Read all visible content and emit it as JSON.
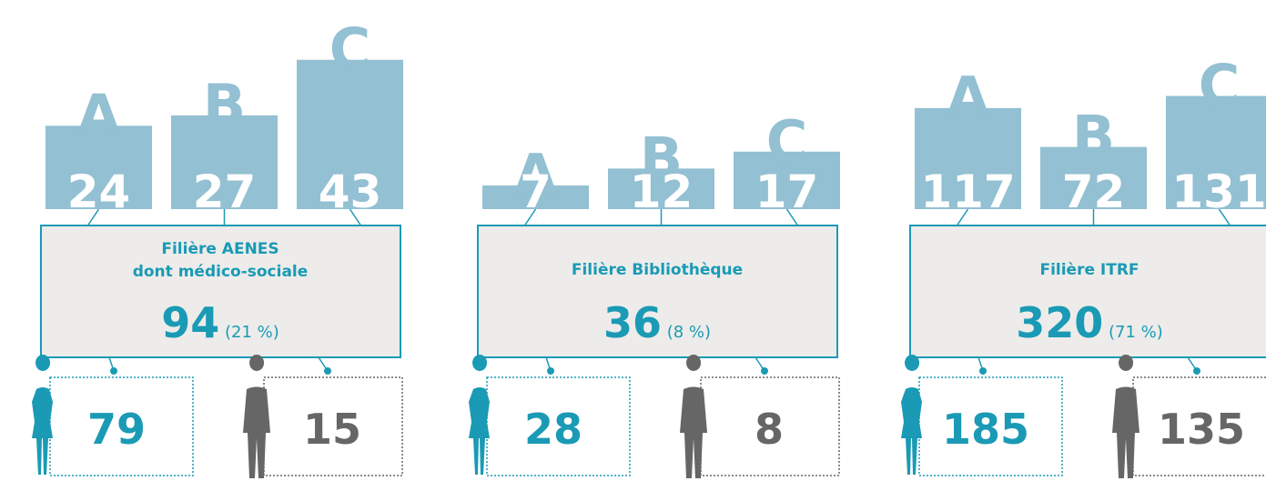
{
  "groups": [
    {
      "bars": [
        {
          "label": "A",
          "value": 24
        },
        {
          "label": "B",
          "value": 27
        },
        {
          "label": "C",
          "value": 43
        }
      ],
      "title_lines": [
        "Filière AENES",
        "dont médico-sociale"
      ],
      "total": 94,
      "share": "(21 %)",
      "women": 79,
      "men": 15
    },
    {
      "bars": [
        {
          "label": "A",
          "value": 7
        },
        {
          "label": "B",
          "value": 12
        },
        {
          "label": "C",
          "value": 17
        }
      ],
      "title_lines": [
        "Filière Bibliothèque"
      ],
      "total": 36,
      "share": "(8 %)",
      "women": 28,
      "men": 8
    },
    {
      "bars": [
        {
          "label": "A",
          "value": 117
        },
        {
          "label": "B",
          "value": 72
        },
        {
          "label": "C",
          "value": 131
        }
      ],
      "title_lines": [
        "Filière ITRF"
      ],
      "total": 320,
      "share": "(71 %)",
      "women": 185,
      "men": 135
    }
  ]
}
